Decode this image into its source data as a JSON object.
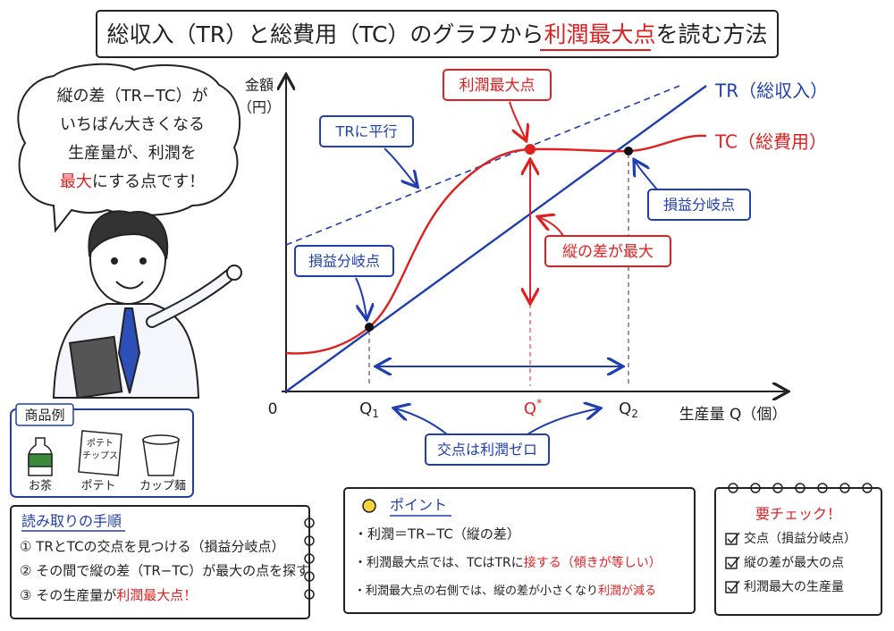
{
  "title": {
    "part1": "総収入（TR）と総費用（TC）のグラフから",
    "highlight": "利潤最大点",
    "part2": "を読む方法"
  },
  "speech": {
    "lines": [
      "縦の差（TR−TC）が",
      "いちばん大きくなる",
      "生産量が、利潤を"
    ],
    "highlight": "最大",
    "tail": "にする点です！"
  },
  "graph": {
    "y_label": [
      "金額",
      "（円）"
    ],
    "x_label": "生産量 Q（個）",
    "origin": "0",
    "ticks": [
      {
        "base": "Q",
        "sub": "1"
      },
      {
        "base": "Q",
        "sub": "*"
      },
      {
        "base": "Q",
        "sub": "2"
      }
    ],
    "tr_label": "TR（総収入）",
    "tc_label": "TC（総費用）",
    "callouts": {
      "parallel": "TRに平行",
      "max_point": "利潤最大点",
      "break_even_left": "損益分岐点",
      "break_even_right": "損益分岐点",
      "max_gap": "縦の差が最大",
      "zero_profit": "交点は利潤ゼロ"
    }
  },
  "products": {
    "title": "商品例",
    "items": [
      "お茶",
      "ポテト",
      "カップ麺"
    ],
    "package_text": [
      "ポテト",
      "チップス"
    ]
  },
  "steps": {
    "title": "読み取りの手順",
    "items": [
      "① TRとTCの交点を見つける（損益分岐点）",
      "② その間で縦の差（TR−TC）が最大の点を探す"
    ],
    "last": "③ その生産量が",
    "last_highlight": "利潤最大点！"
  },
  "point": {
    "title": "ポイント",
    "items": [
      "・利潤＝TR−TC（縦の差）"
    ],
    "item2": "・利潤最大点では、TCはTRに",
    "item2_highlight": "接する（傾きが等しい）",
    "item3": "・利潤最大点の右側では、縦の差が小さくなり",
    "item3_highlight": "利潤が減る"
  },
  "checklist": {
    "title": "要チェック！",
    "items": [
      "交点（損益分岐点）",
      "縦の差が最大の点",
      "利潤最大の生産量"
    ]
  }
}
